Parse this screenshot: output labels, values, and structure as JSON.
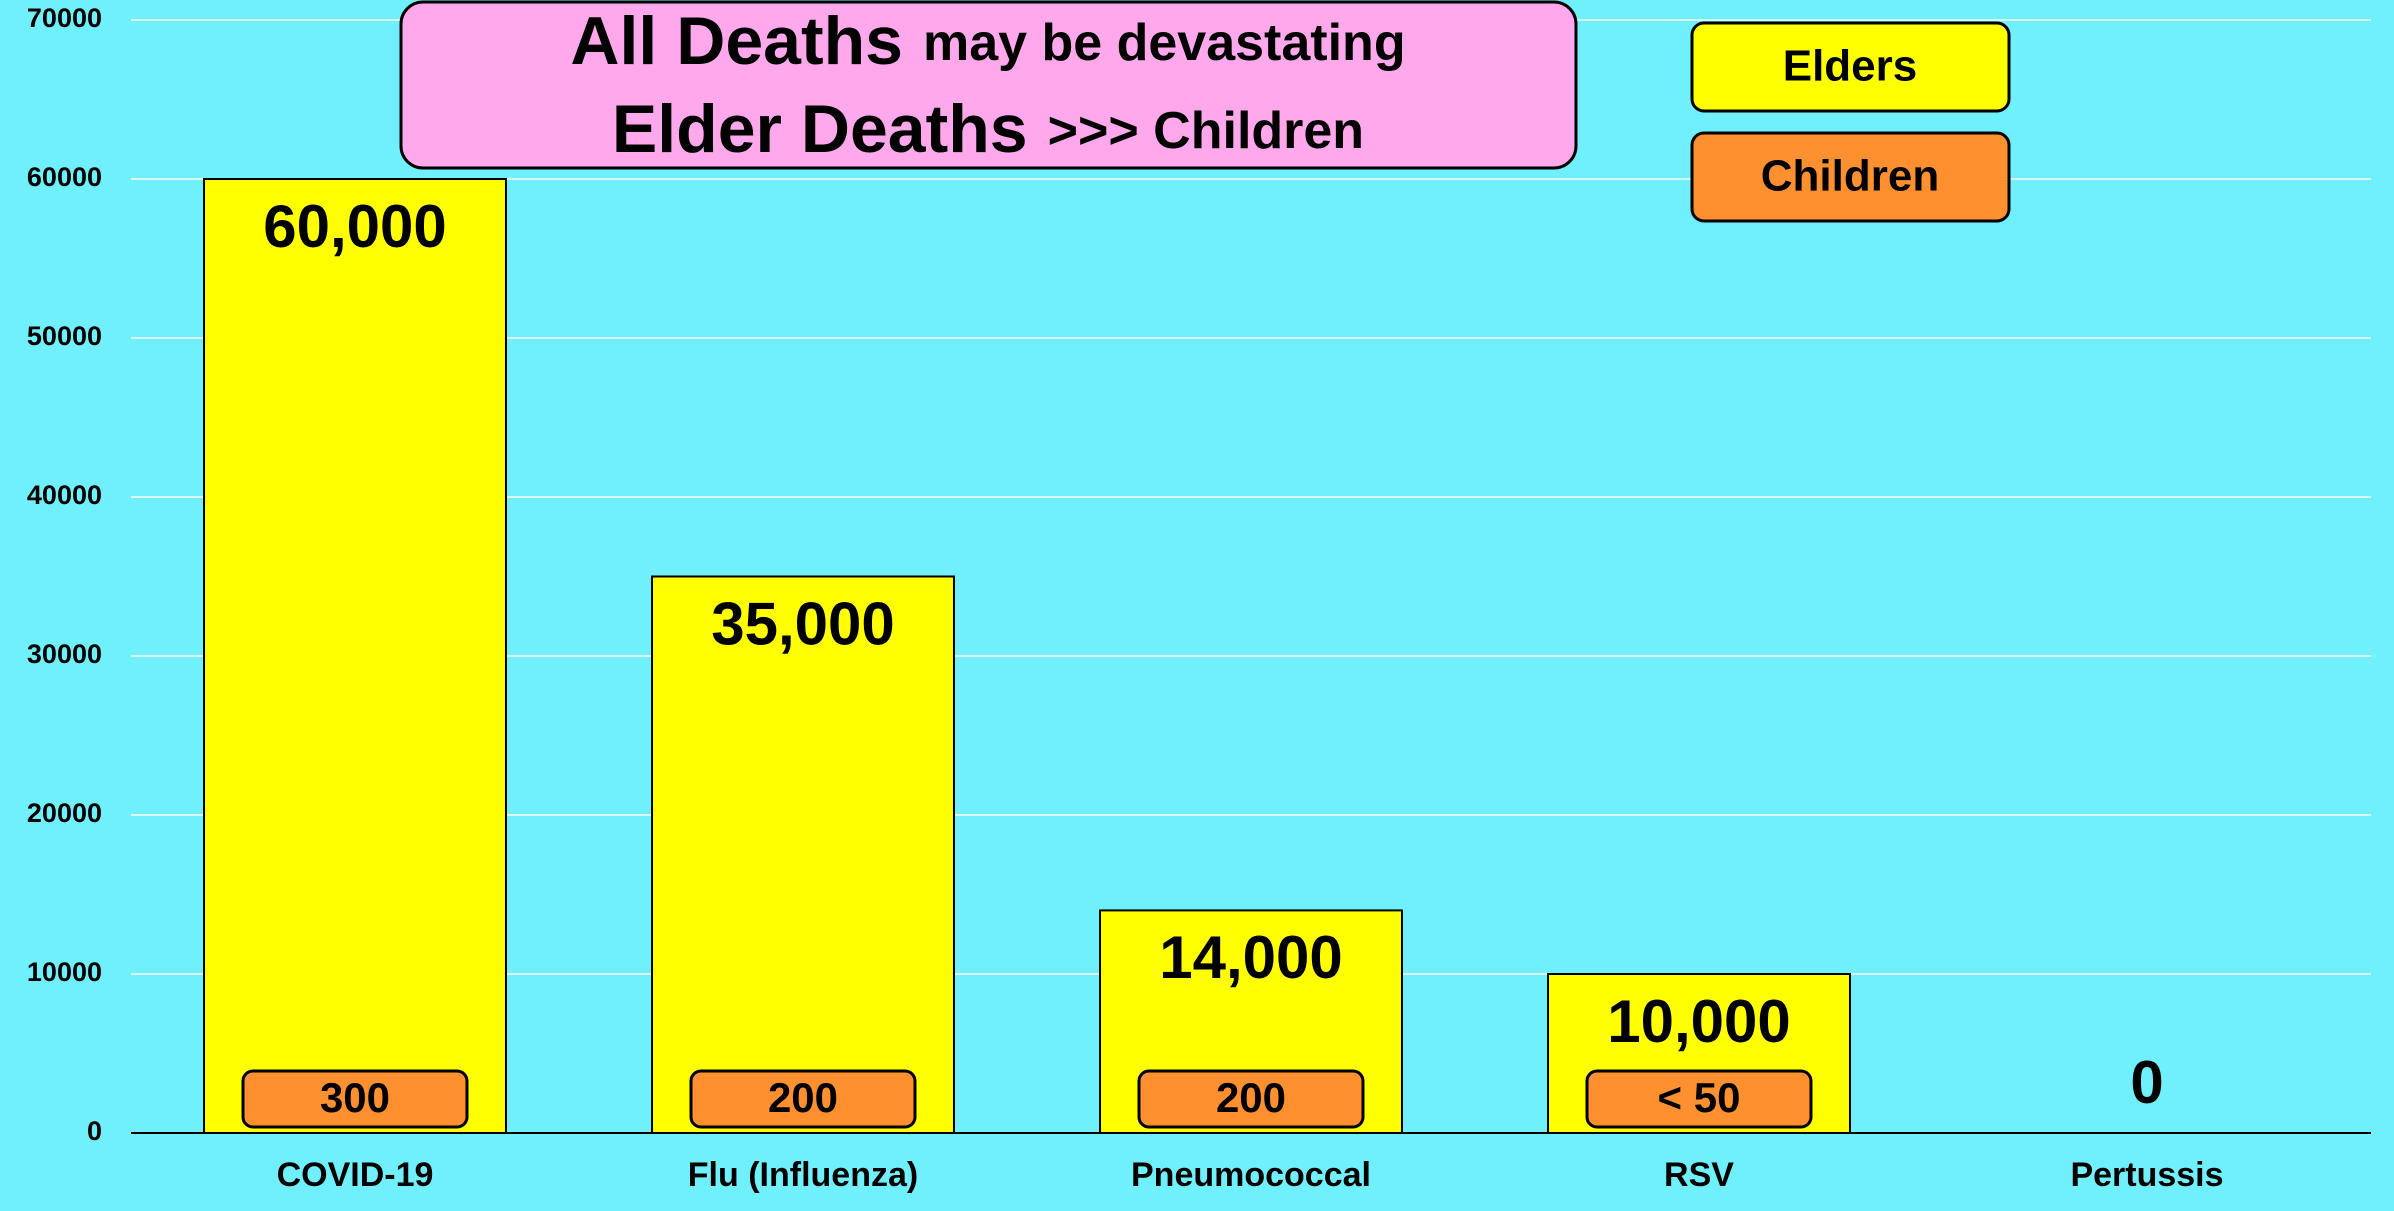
{
  "chart_data": {
    "type": "bar",
    "title_lines": [
      [
        "All Deaths",
        "may be devastating"
      ],
      [
        "Elder Deaths",
        ">>> Children"
      ]
    ],
    "categories": [
      "COVID-19",
      "Flu (Influenza)",
      "Pneumococcal",
      "RSV",
      "Pertussis"
    ],
    "series": [
      {
        "name": "Elders",
        "color": "#ffff00",
        "values": [
          60000,
          35000,
          14000,
          10000,
          0
        ],
        "value_labels": [
          "60,000",
          "35,000",
          "14,000",
          "10,000",
          "0"
        ]
      },
      {
        "name": "Children",
        "color": "#ff9030",
        "values": [
          300,
          200,
          200,
          50,
          null
        ],
        "value_labels": [
          "300",
          "200",
          "200",
          "< 50",
          null
        ]
      }
    ],
    "ylim": [
      0,
      70000
    ],
    "yticks": [
      0,
      10000,
      20000,
      30000,
      40000,
      50000,
      60000,
      70000
    ],
    "grid": true,
    "legend": "top-right"
  }
}
